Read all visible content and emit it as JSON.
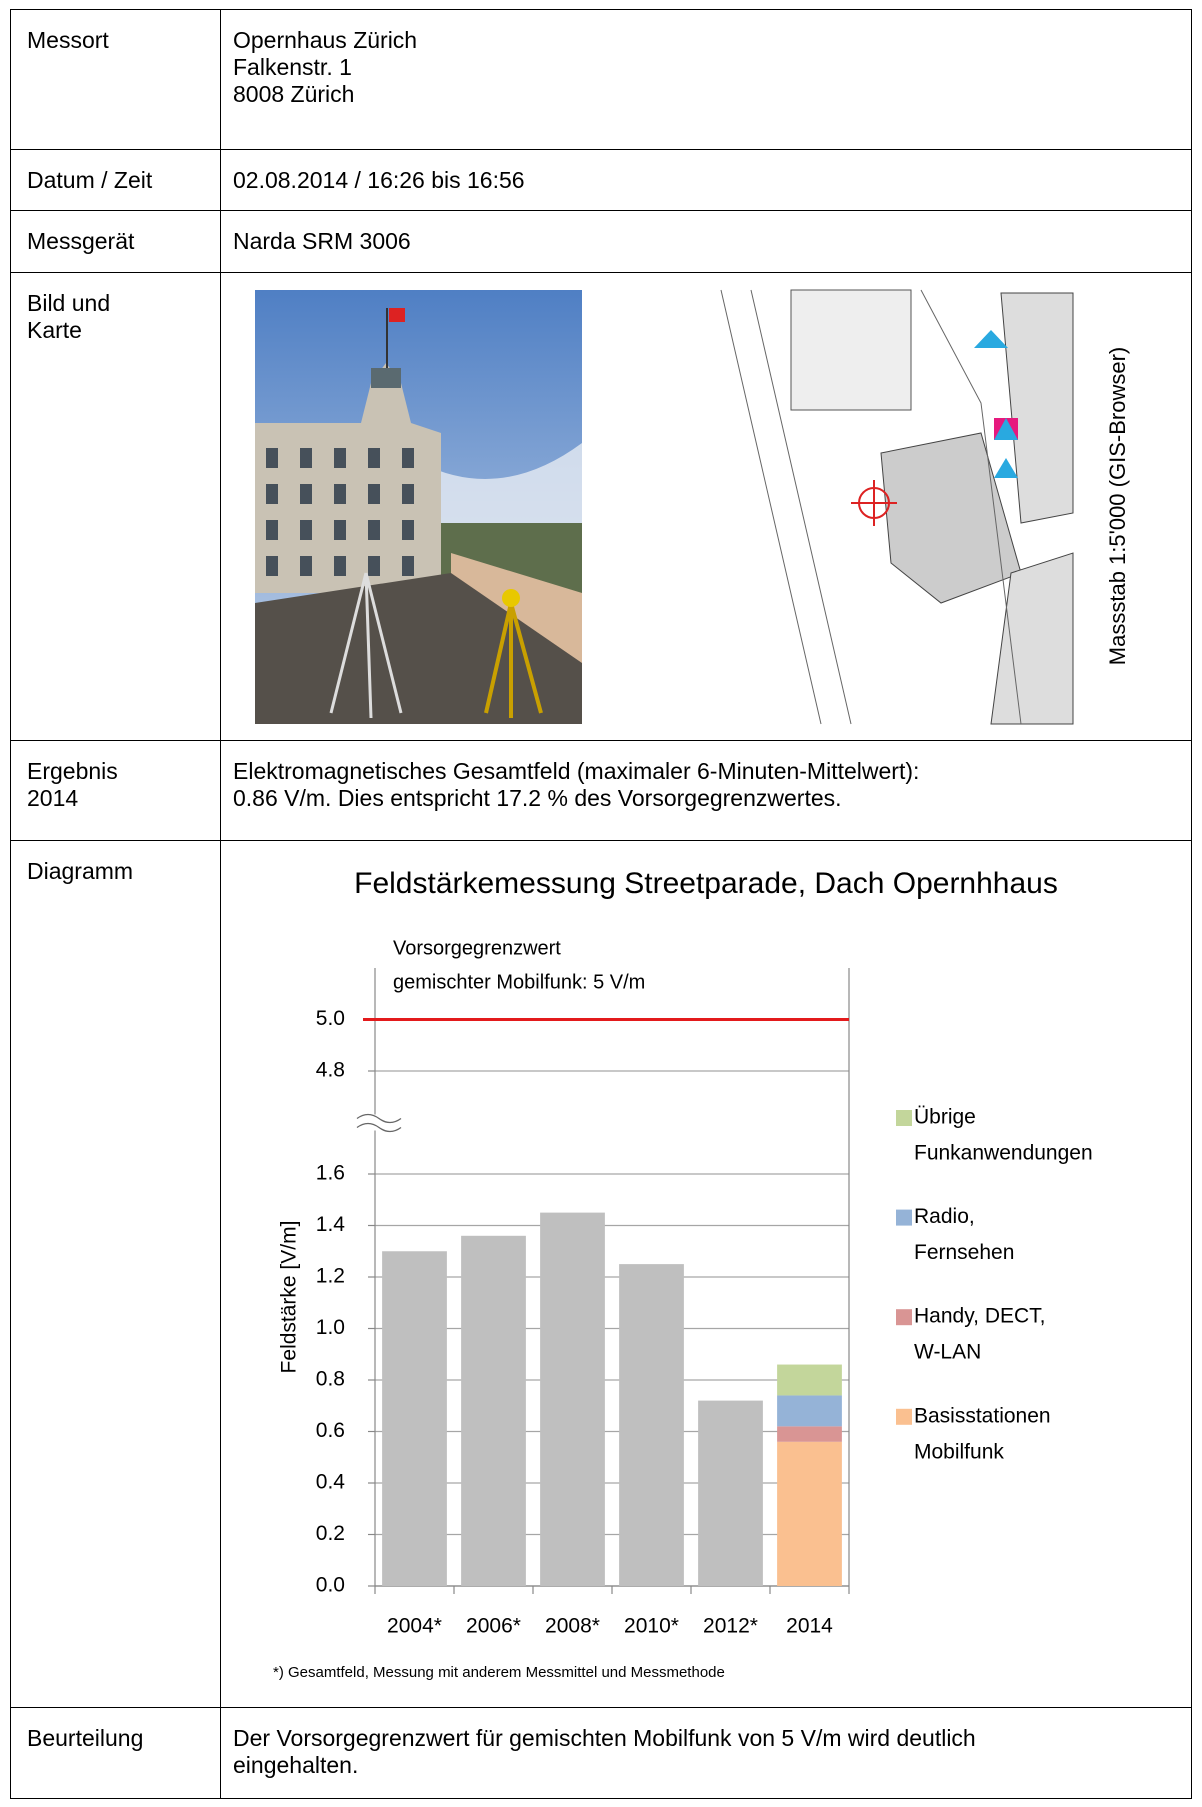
{
  "rows": [
    {
      "label": [
        "Messort"
      ],
      "content": [
        "Opernhaus Zürich",
        "Falkenstr. 1",
        "8008 Zürich"
      ]
    },
    {
      "label": [
        "Datum / Zeit"
      ],
      "content": [
        "02.08.2014 / 16:26 bis 16:56"
      ]
    },
    {
      "label": [
        "Messgerät"
      ],
      "content": [
        "Narda SRM 3006"
      ]
    },
    {
      "label": [
        "Bild und",
        "Karte"
      ],
      "map_caption": "Massstab 1:5'000 (GIS-Browser)"
    },
    {
      "label": [
        "Ergebnis",
        "2014"
      ],
      "content": [
        "Elektromagnetisches Gesamtfeld (maximaler 6-Minuten-Mittelwert):",
        "0.86 V/m. Dies entspricht 17.2 % des Vorsorgegrenzwertes."
      ]
    },
    {
      "label": [
        "Diagramm"
      ]
    },
    {
      "label": [
        "Beurteilung"
      ],
      "content": [
        "Der Vorsorgegrenzwert für gemischten Mobilfunk von 5 V/m wird deutlich",
        "eingehalten."
      ]
    }
  ],
  "chart_data": {
    "type": "bar",
    "title": "Feldstärkemessung Streetparade, Dach Opernhhaus",
    "annotation": [
      "Vorsorgegrenzwert",
      "gemischter Mobilfunk: 5 V/m"
    ],
    "ylabel": "Feldstärke [V/m]",
    "footnote": "*) Gesamtfeld, Messung mit anderem Messmittel und Messmethode",
    "categories": [
      "2004*",
      "2006*",
      "2008*",
      "2010*",
      "2012*",
      "2014"
    ],
    "series": [
      {
        "color": "#bfbfbf",
        "values": [
          1.3,
          1.36,
          1.45,
          1.25,
          0.72,
          null
        ]
      },
      {
        "name": [
          "Basisstationen",
          "Mobilfunk"
        ],
        "color": "#fac090",
        "values": [
          null,
          null,
          null,
          null,
          null,
          0.56
        ]
      },
      {
        "name": [
          "Handy, DECT,",
          "W-LAN"
        ],
        "color": "#d99594",
        "values": [
          null,
          null,
          null,
          null,
          null,
          0.06
        ]
      },
      {
        "name": [
          "Radio,",
          "Fernsehen"
        ],
        "color": "#95b3d7",
        "values": [
          null,
          null,
          null,
          null,
          null,
          0.12
        ]
      },
      {
        "name": [
          "Übrige",
          "Funkanwendungen"
        ],
        "color": "#c3d69b",
        "values": [
          null,
          null,
          null,
          null,
          null,
          0.12
        ]
      }
    ],
    "limit_line": {
      "value": 5.0,
      "color": "#e31a1c"
    },
    "ylim": [
      0,
      5.2
    ],
    "axis_break": [
      1.8,
      4.6
    ],
    "yticks": [
      {
        "value": 0,
        "label": "0.0"
      },
      0.2,
      0.4,
      0.6,
      0.8,
      {
        "value": 1,
        "label": "1.0"
      },
      1.2,
      1.4,
      1.6,
      4.8,
      {
        "value": 5,
        "label": "5.0"
      }
    ],
    "grid": true,
    "legend": "right"
  }
}
